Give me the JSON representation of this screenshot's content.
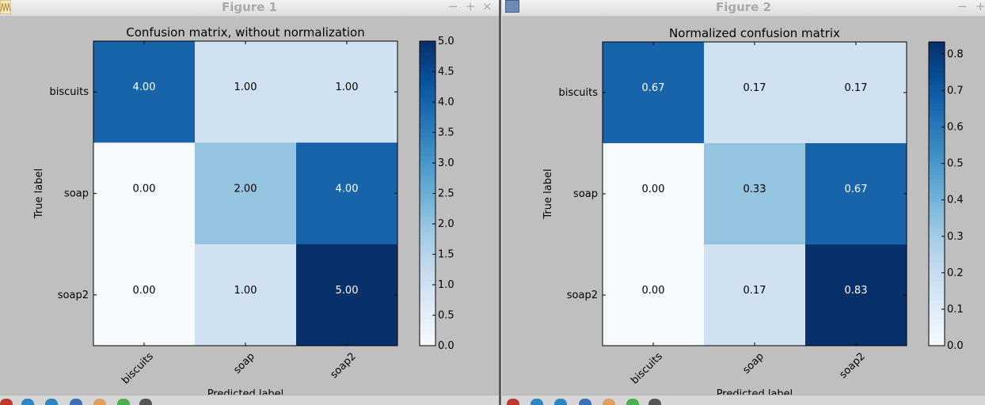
{
  "windows": [
    {
      "title": "Figure 1",
      "controls": {
        "minimize": "−",
        "maximize": "+",
        "close": "×"
      }
    },
    {
      "title": "Figure 2",
      "controls": {
        "minimize": "−",
        "maximize": "+"
      }
    }
  ],
  "colors": {
    "blues": [
      "#f7fbff",
      "#deebf7",
      "#c6dbef",
      "#9ecae1",
      "#6baed6",
      "#4292c6",
      "#2171b5",
      "#08519c",
      "#08306b"
    ],
    "text_dark": "#000000",
    "text_light": "#ffffff"
  },
  "chart_data": [
    {
      "type": "heatmap",
      "title": "Confusion matrix, without normalization",
      "xlabel": "Predicted label",
      "ylabel": "True label",
      "x_categories": [
        "biscuits",
        "soap",
        "soap2"
      ],
      "y_categories": [
        "biscuits",
        "soap",
        "soap2"
      ],
      "values": [
        [
          4,
          1,
          1
        ],
        [
          0,
          2,
          4
        ],
        [
          0,
          1,
          5
        ]
      ],
      "value_labels": [
        [
          "4.00",
          "1.00",
          "1.00"
        ],
        [
          "0.00",
          "2.00",
          "4.00"
        ],
        [
          "0.00",
          "1.00",
          "5.00"
        ]
      ],
      "vmin": 0,
      "vmax": 5,
      "colorbar_ticks": [
        0.0,
        0.5,
        1.0,
        1.5,
        2.0,
        2.5,
        3.0,
        3.5,
        4.0,
        4.5,
        5.0
      ],
      "colorbar_tick_labels": [
        "0.0",
        "0.5",
        "1.0",
        "1.5",
        "2.0",
        "2.5",
        "3.0",
        "3.5",
        "4.0",
        "4.5",
        "5.0"
      ]
    },
    {
      "type": "heatmap",
      "title": "Normalized confusion matrix",
      "xlabel": "Predicted label",
      "ylabel": "True label",
      "x_categories": [
        "biscuits",
        "soap",
        "soap2"
      ],
      "y_categories": [
        "biscuits",
        "soap",
        "soap2"
      ],
      "values": [
        [
          0.6667,
          0.1667,
          0.1667
        ],
        [
          0.0,
          0.3333,
          0.6667
        ],
        [
          0.0,
          0.1667,
          0.8333
        ]
      ],
      "value_labels": [
        [
          "0.67",
          "0.17",
          "0.17"
        ],
        [
          "0.00",
          "0.33",
          "0.67"
        ],
        [
          "0.00",
          "0.17",
          "0.83"
        ]
      ],
      "vmin": 0,
      "vmax": 0.8333,
      "colorbar_ticks": [
        0.0,
        0.1,
        0.2,
        0.3,
        0.4,
        0.5,
        0.6,
        0.7,
        0.8
      ],
      "colorbar_tick_labels": [
        "0.0",
        "0.1",
        "0.2",
        "0.3",
        "0.4",
        "0.5",
        "0.6",
        "0.7",
        "0.8"
      ]
    }
  ]
}
